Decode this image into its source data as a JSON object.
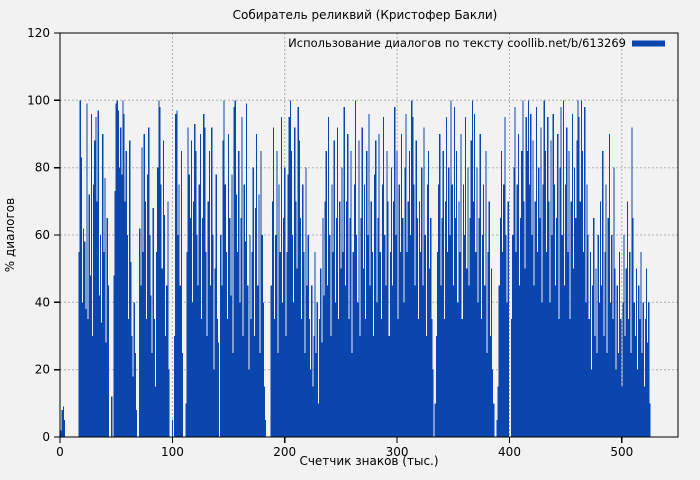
{
  "chart_data": {
    "type": "bar",
    "style": "impulses",
    "title": "Собиратель реликвий (Кристофер Бакли)",
    "legend_label": "Использование диалогов по тексту coollib.net/b/613269",
    "xlabel": "Счетчик знаков (тыс.)",
    "ylabel": "% диалогов",
    "xlim": [
      0,
      550
    ],
    "ylim": [
      0,
      120
    ],
    "xticks": [
      0,
      100,
      200,
      300,
      400,
      500
    ],
    "yticks": [
      0,
      20,
      40,
      60,
      80,
      100,
      120
    ],
    "grid": true,
    "legend_position": "top-right",
    "x_step": 1,
    "colors": {
      "bar": "#0a46ad",
      "grid": "#b0b0b0",
      "background": "#f2f2f2",
      "frame": "#000000",
      "text": "#000000"
    },
    "values": [
      0,
      2,
      8,
      9,
      5,
      0,
      0,
      0,
      0,
      0,
      0,
      0,
      0,
      0,
      0,
      0,
      0,
      55,
      100,
      83,
      40,
      62,
      58,
      38,
      99,
      35,
      72,
      48,
      96,
      30,
      75,
      88,
      95,
      70,
      97,
      42,
      60,
      34,
      90,
      55,
      77,
      28,
      65,
      45,
      0,
      0,
      12,
      0,
      48,
      73,
      99,
      100,
      97,
      80,
      92,
      78,
      100,
      96,
      70,
      85,
      60,
      35,
      88,
      52,
      30,
      18,
      40,
      25,
      8,
      0,
      0,
      62,
      45,
      86,
      55,
      90,
      70,
      35,
      78,
      92,
      60,
      42,
      25,
      68,
      35,
      15,
      55,
      80,
      100,
      98,
      75,
      50,
      88,
      66,
      30,
      45,
      70,
      20,
      0,
      0,
      5,
      0,
      30,
      96,
      97,
      60,
      75,
      45,
      85,
      25,
      0,
      0,
      10,
      55,
      92,
      78,
      65,
      88,
      40,
      70,
      93,
      85,
      60,
      45,
      75,
      90,
      35,
      65,
      96,
      92,
      55,
      30,
      70,
      85,
      45,
      92,
      60,
      20,
      50,
      78,
      35,
      28,
      0,
      60,
      45,
      88,
      100,
      75,
      55,
      35,
      90,
      65,
      42,
      78,
      25,
      98,
      100,
      72,
      55,
      85,
      40,
      65,
      95,
      30,
      75,
      58,
      99,
      45,
      20,
      60,
      35,
      55,
      80,
      30,
      68,
      90,
      45,
      72,
      25,
      85,
      60,
      40,
      15,
      5,
      0,
      0,
      0,
      0,
      45,
      70,
      92,
      35,
      60,
      85,
      25,
      75,
      55,
      95,
      40,
      65,
      80,
      30,
      55,
      78,
      95,
      100,
      85,
      60,
      40,
      92,
      70,
      50,
      98,
      88,
      65,
      35,
      75,
      55,
      25,
      80,
      45,
      60,
      35,
      20,
      45,
      15,
      30,
      55,
      25,
      40,
      10,
      35,
      50,
      28,
      65,
      42,
      70,
      85,
      45,
      95,
      60,
      30,
      75,
      55,
      88,
      40,
      65,
      92,
      35,
      70,
      50,
      80,
      55,
      98,
      45,
      70,
      90,
      35,
      65,
      85,
      25,
      55,
      75,
      100,
      60,
      40,
      88,
      30,
      65,
      92,
      50,
      75,
      35,
      85,
      60,
      96,
      45,
      70,
      55,
      30,
      78,
      88,
      40,
      65,
      90,
      55,
      35,
      75,
      95,
      60,
      45,
      85,
      70,
      30,
      55,
      80,
      45,
      70,
      98,
      60,
      85,
      35,
      75,
      55,
      90,
      65,
      40,
      80,
      96,
      55,
      70,
      85,
      60,
      100,
      95,
      75,
      45,
      88,
      65,
      35,
      70,
      55,
      80,
      45,
      92,
      60,
      30,
      75,
      85,
      50,
      65,
      35,
      20,
      0,
      10,
      30,
      55,
      75,
      90,
      45,
      65,
      85,
      35,
      70,
      95,
      55,
      80,
      60,
      100,
      75,
      45,
      98,
      65,
      85,
      40,
      70,
      55,
      90,
      35,
      75,
      60,
      95,
      50,
      80,
      45,
      65,
      88,
      100,
      70,
      96,
      55,
      80,
      40,
      65,
      90,
      35,
      60,
      75,
      45,
      85,
      25,
      55,
      70,
      30,
      50,
      20,
      10,
      0,
      0,
      5,
      15,
      45,
      65,
      85,
      55,
      75,
      95,
      60,
      40,
      70,
      0,
      0,
      35,
      60,
      80,
      98,
      55,
      75,
      90,
      45,
      65,
      85,
      100,
      70,
      50,
      95,
      85,
      100,
      75,
      96,
      60,
      88,
      45,
      70,
      98,
      55,
      80,
      65,
      92,
      40,
      75,
      100,
      85,
      55,
      95,
      70,
      40,
      88,
      60,
      96,
      75,
      45,
      65,
      90,
      35,
      80,
      98,
      60,
      100,
      45,
      75,
      92,
      55,
      85,
      35,
      70,
      96,
      50,
      80,
      65,
      88,
      100,
      95,
      70,
      100,
      85,
      55,
      98,
      40,
      75,
      60,
      35,
      55,
      20,
      45,
      65,
      30,
      50,
      25,
      60,
      40,
      70,
      45,
      85,
      30,
      55,
      75,
      25,
      65,
      90,
      40,
      60,
      35,
      80,
      50,
      20,
      45,
      25,
      55,
      35,
      15,
      40,
      60,
      30,
      50,
      70,
      35,
      55,
      25,
      92,
      65,
      40,
      30,
      50,
      20,
      45,
      35,
      55,
      25,
      40,
      15,
      35,
      50,
      28,
      40,
      10
    ]
  }
}
